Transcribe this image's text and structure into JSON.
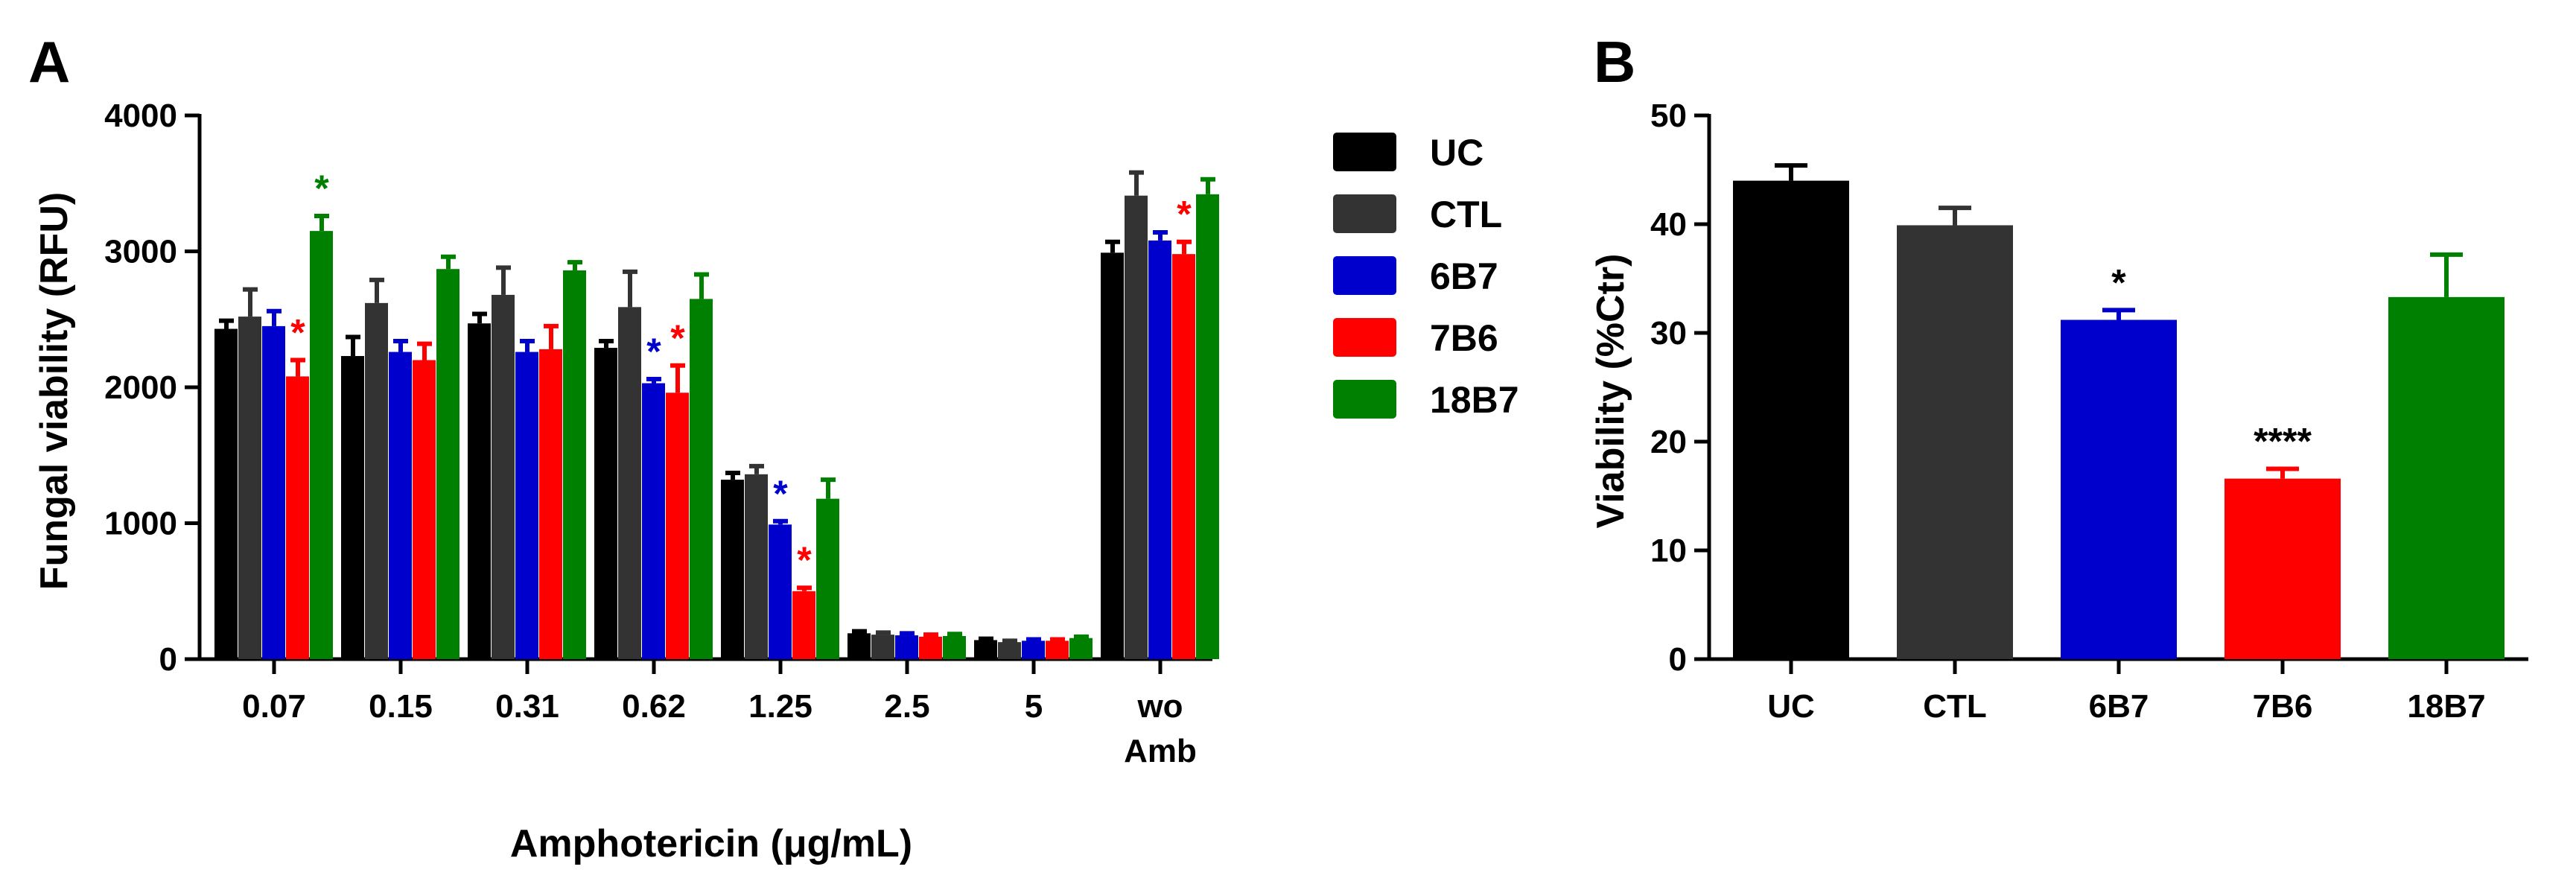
{
  "chart_data": [
    {
      "panel": "A",
      "type": "bar",
      "xlabel": "Amphotericin (μg/mL)",
      "ylabel": "Fungal viability (RFU)",
      "ylim": [
        0,
        4000
      ],
      "yticks": [
        0,
        1000,
        2000,
        3000,
        4000
      ],
      "grid": false,
      "categories": [
        "0.07",
        "0.15",
        "0.31",
        "0.62",
        "1.25",
        "2.5",
        "5",
        "wo Amb"
      ],
      "category_lines": [
        [
          "0.07"
        ],
        [
          "0.15"
        ],
        [
          "0.31"
        ],
        [
          "0.62"
        ],
        [
          "1.25"
        ],
        [
          "2.5"
        ],
        [
          "5"
        ],
        [
          "wo",
          "Amb"
        ]
      ],
      "legend_position": "right",
      "series": [
        {
          "name": "UC",
          "color": "#000000",
          "values": [
            2430,
            2230,
            2470,
            2290,
            1320,
            190,
            140,
            2990
          ],
          "errors": [
            60,
            140,
            70,
            50,
            50,
            15,
            10,
            80
          ]
        },
        {
          "name": "CTL",
          "color": "#333333",
          "values": [
            2520,
            2620,
            2680,
            2590,
            1360,
            180,
            125,
            3410
          ],
          "errors": [
            200,
            170,
            200,
            260,
            60,
            15,
            10,
            170
          ]
        },
        {
          "name": "6B7",
          "color": "#0000cc",
          "values": [
            2450,
            2260,
            2260,
            2030,
            990,
            175,
            135,
            3080
          ],
          "errors": [
            110,
            80,
            80,
            30,
            25,
            15,
            10,
            60
          ]
        },
        {
          "name": "7B6",
          "color": "#ff0000",
          "values": [
            2080,
            2200,
            2280,
            1960,
            500,
            165,
            135,
            2980
          ],
          "errors": [
            120,
            120,
            170,
            200,
            25,
            15,
            10,
            90
          ]
        },
        {
          "name": "18B7",
          "color": "#008000",
          "values": [
            3150,
            2870,
            2860,
            2650,
            1180,
            170,
            155,
            3420
          ],
          "errors": [
            110,
            90,
            60,
            180,
            140,
            15,
            10,
            110
          ]
        }
      ],
      "annotations": [
        {
          "text": "*",
          "category": "0.07",
          "series": "7B6",
          "color": "#ff0000"
        },
        {
          "text": "*",
          "category": "0.07",
          "series": "18B7",
          "color": "#008000"
        },
        {
          "text": "*",
          "category": "0.62",
          "series": "6B7",
          "color": "#0000cc"
        },
        {
          "text": "*",
          "category": "0.62",
          "series": "7B6",
          "color": "#ff0000"
        },
        {
          "text": "*",
          "category": "1.25",
          "series": "6B7",
          "color": "#0000cc"
        },
        {
          "text": "*",
          "category": "1.25",
          "series": "7B6",
          "color": "#ff0000"
        },
        {
          "text": "*",
          "category": "wo Amb",
          "series": "7B6",
          "color": "#ff0000"
        }
      ]
    },
    {
      "panel": "B",
      "type": "bar",
      "xlabel": "",
      "ylabel": "Viability (%Ctr)",
      "ylim": [
        0,
        50
      ],
      "yticks": [
        0,
        10,
        20,
        30,
        40,
        50
      ],
      "grid": false,
      "categories": [
        "UC",
        "CTL",
        "6B7",
        "7B6",
        "18B7"
      ],
      "values": [
        44.0,
        39.9,
        31.2,
        16.6,
        33.3
      ],
      "errors": [
        1.4,
        1.6,
        0.9,
        0.9,
        3.9
      ],
      "colors": [
        "#000000",
        "#333333",
        "#0000cc",
        "#ff0000",
        "#008000"
      ],
      "annotations": [
        {
          "text": "*",
          "category": "6B7"
        },
        {
          "text": "****",
          "category": "7B6"
        }
      ]
    }
  ]
}
